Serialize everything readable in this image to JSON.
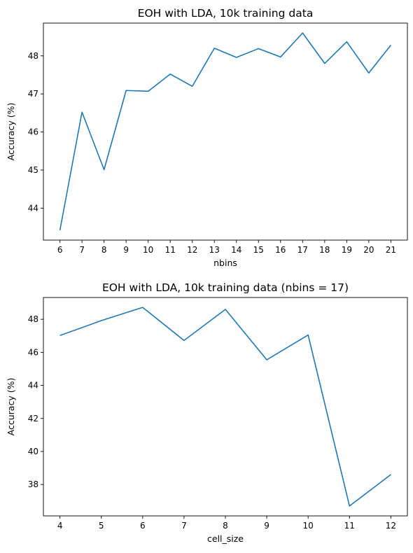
{
  "chart_data": [
    {
      "type": "line",
      "title": "EOH with LDA, 10k training data",
      "xlabel": "nbins",
      "ylabel": "Accuracy (%)",
      "x": [
        6,
        7,
        8,
        9,
        10,
        11,
        12,
        13,
        14,
        15,
        16,
        17,
        18,
        19,
        20,
        21
      ],
      "series": [
        {
          "values": [
            43.42,
            46.52,
            45.01,
            47.09,
            47.07,
            47.52,
            47.2,
            48.2,
            47.96,
            48.19,
            47.97,
            48.6,
            47.8,
            48.37,
            47.55,
            48.28
          ]
        }
      ],
      "xticks": [
        6,
        7,
        8,
        9,
        10,
        11,
        12,
        13,
        14,
        15,
        16,
        17,
        18,
        19,
        20,
        21
      ],
      "yticks": [
        44,
        45,
        46,
        47,
        48
      ],
      "xlim": [
        5.25,
        21.75
      ],
      "ylim": [
        43.16,
        48.86
      ],
      "grid": false,
      "color": "#1f77b4"
    },
    {
      "type": "line",
      "title": "EOH with LDA, 10k training data (nbins = 17)",
      "xlabel": "cell_size",
      "ylabel": "Accuracy (%)",
      "x": [
        4,
        5,
        6,
        7,
        8,
        9,
        10,
        11,
        12
      ],
      "series": [
        {
          "values": [
            47.02,
            47.92,
            48.72,
            46.72,
            48.6,
            45.55,
            47.05,
            36.7,
            38.6
          ]
        }
      ],
      "xticks": [
        4,
        5,
        6,
        7,
        8,
        9,
        10,
        11,
        12
      ],
      "yticks": [
        38,
        40,
        42,
        44,
        46,
        48
      ],
      "xlim": [
        3.6,
        12.4
      ],
      "ylim": [
        36.1,
        49.32
      ],
      "grid": false,
      "color": "#1f77b4"
    }
  ]
}
